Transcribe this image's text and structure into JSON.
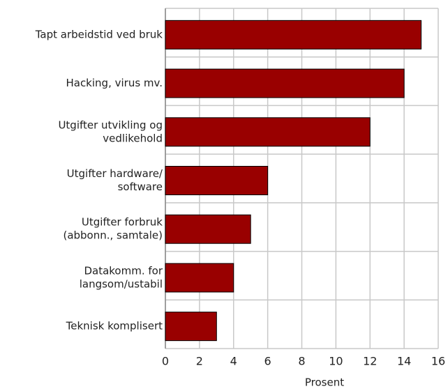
{
  "chart_data": {
    "type": "bar",
    "orientation": "horizontal",
    "categories": [
      [
        "Tapt arbeidstid ved bruk"
      ],
      [
        "Hacking, virus mv."
      ],
      [
        "Utgifter utvikling og",
        "vedlikehold"
      ],
      [
        "Utgifter hardware/",
        "software"
      ],
      [
        "Utgifter forbruk",
        "(abbonn., samtale)"
      ],
      [
        "Datakomm. for",
        "langsom/ustabil"
      ],
      [
        "Teknisk komplisert"
      ]
    ],
    "values": [
      15,
      14,
      12,
      6,
      5,
      4,
      3
    ],
    "color": "#990000",
    "xlabel": "Prosent",
    "xlim": [
      0,
      16
    ],
    "xticks": [
      0,
      2,
      4,
      6,
      8,
      10,
      12,
      14,
      16
    ],
    "grid": true
  }
}
